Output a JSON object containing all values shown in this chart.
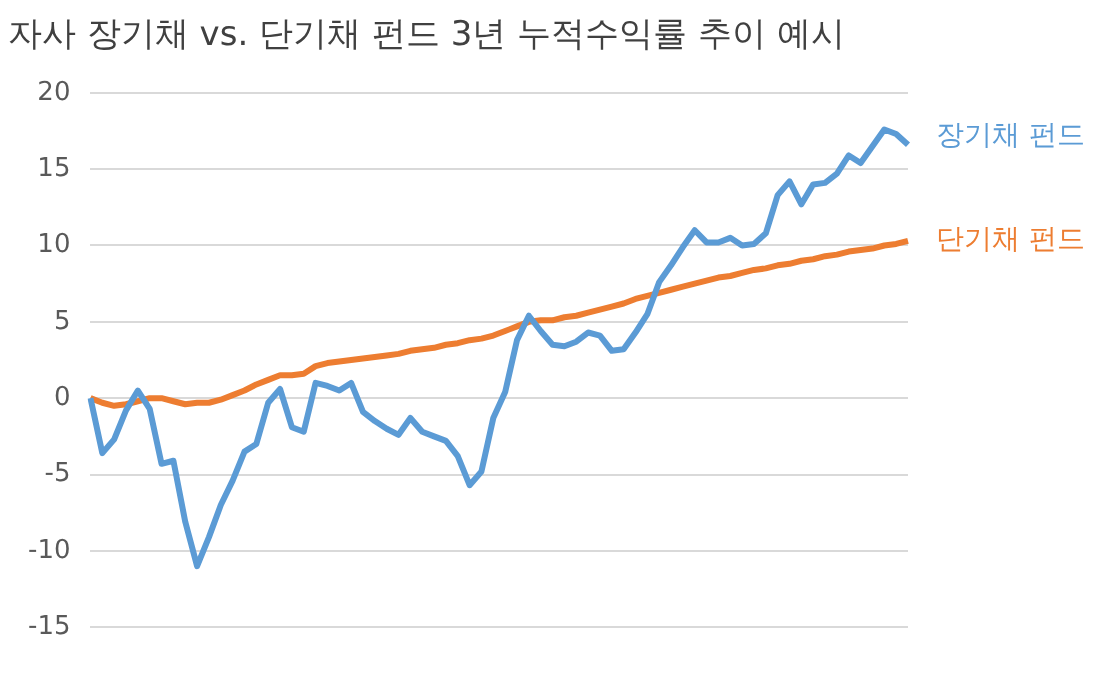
{
  "chart_data": {
    "type": "line",
    "title": "자사 장기채 vs. 단기채 펀드 3년 누적수익률 추이 예시",
    "categories": [
      null,
      null,
      null,
      null,
      null,
      null,
      null,
      null,
      null,
      null,
      null,
      null,
      null,
      null,
      null,
      null,
      null,
      null,
      null,
      null,
      null,
      null,
      null,
      null,
      null,
      null,
      null,
      null,
      null,
      null,
      null,
      null,
      null,
      null,
      null,
      null,
      null,
      null,
      null,
      null,
      null,
      null,
      null,
      null,
      null,
      null,
      null,
      null,
      null,
      null,
      null,
      null,
      null,
      null,
      null,
      null,
      null,
      null,
      null,
      null,
      null,
      null,
      null,
      null,
      null,
      null,
      null,
      null,
      null,
      null
    ],
    "series": [
      {
        "name": "장기채 펀드",
        "color": "#5b9bd5",
        "values": [
          0,
          -3.6,
          -2.7,
          -0.8,
          0.5,
          -0.7,
          -4.3,
          -4.1,
          -8.1,
          -11,
          -9.1,
          -7,
          -5.4,
          -3.5,
          -3,
          -0.3,
          0.6,
          -1.9,
          -2.2,
          1,
          0.8,
          0.5,
          1,
          -0.9,
          -1.5,
          -2,
          -2.4,
          -1.3,
          -2.2,
          -2.5,
          -2.8,
          -3.8,
          -5.7,
          -4.8,
          -1.3,
          0.4,
          3.8,
          5.4,
          4.4,
          3.5,
          3.4,
          3.7,
          4.3,
          4.1,
          3.1,
          3.2,
          4.3,
          5.5,
          7.6,
          8.7,
          9.9,
          11,
          10.2,
          10.2,
          10.5,
          10,
          10.1,
          10.8,
          13.3,
          14.2,
          12.7,
          14,
          14.1,
          14.7,
          15.9,
          15.4,
          16.5,
          17.6,
          17.3,
          16.6
        ]
      },
      {
        "name": "단기채 펀드",
        "color": "#ed7d31",
        "values": [
          0,
          -0.3,
          -0.5,
          -0.4,
          -0.2,
          0,
          0,
          -0.2,
          -0.4,
          -0.3,
          -0.3,
          -0.1,
          0.2,
          0.5,
          0.9,
          1.2,
          1.5,
          1.5,
          1.6,
          2.1,
          2.3,
          2.4,
          2.5,
          2.6,
          2.7,
          2.8,
          2.9,
          3.1,
          3.2,
          3.3,
          3.5,
          3.6,
          3.8,
          3.9,
          4.1,
          4.4,
          4.7,
          5,
          5.1,
          5.1,
          5.3,
          5.4,
          5.6,
          5.8,
          6,
          6.2,
          6.5,
          6.7,
          6.9,
          7.1,
          7.3,
          7.5,
          7.7,
          7.9,
          8,
          8.2,
          8.4,
          8.5,
          8.7,
          8.8,
          9,
          9.1,
          9.3,
          9.4,
          9.6,
          9.7,
          9.8,
          10,
          10.1,
          10.3
        ]
      }
    ],
    "ylim": [
      -15,
      20
    ],
    "yticks": [
      -15,
      -10,
      -5,
      0,
      5,
      10,
      15,
      20
    ],
    "grid": "y",
    "legend": false,
    "marker": "none",
    "line_style": "solid"
  }
}
